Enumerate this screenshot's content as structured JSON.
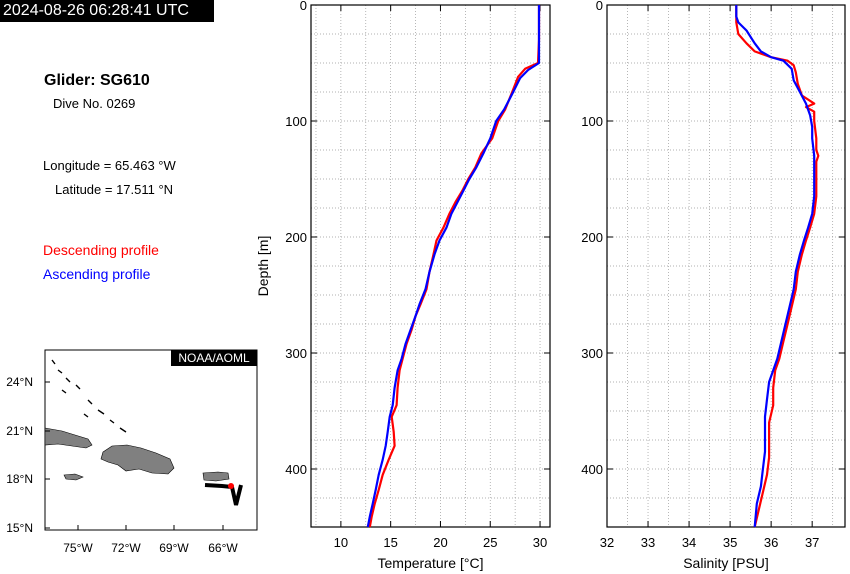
{
  "header": {
    "timestamp": "2024-08-26 06:28:41 UTC",
    "glider": "Glider: SG610",
    "dive": "Dive No. 0269",
    "longitude": "Longitude = 65.463 °W",
    "latitude": "Latitude = 17.511 °N"
  },
  "legend": {
    "descending": "Descending profile",
    "ascending": "Ascending profile",
    "descending_color": "#ff0000",
    "ascending_color": "#0000ff"
  },
  "map": {
    "credit": "NOAA/AOML",
    "lat_ticks": [
      "24°N",
      "21°N",
      "18°N",
      "15°N"
    ],
    "lon_ticks": [
      "75°W",
      "72°W",
      "69°W",
      "66°W"
    ],
    "land_color": "#808080",
    "track_color": "#000000",
    "glider_marker_color": "#ff0000"
  },
  "chart_data": [
    {
      "type": "line",
      "xlabel": "Temperature [°C]",
      "ylabel": "Depth [m]",
      "xlim": [
        7,
        31
      ],
      "ylim": [
        450,
        0
      ],
      "xticks": [
        10,
        15,
        20,
        25,
        30
      ],
      "yticks": [
        0,
        100,
        200,
        300,
        400
      ],
      "grid": true,
      "series": [
        {
          "name": "Descending profile",
          "color": "#ff0000",
          "points": [
            [
              29.9,
              0
            ],
            [
              29.9,
              30
            ],
            [
              29.8,
              50
            ],
            [
              28.5,
              55
            ],
            [
              27.8,
              62
            ],
            [
              27.2,
              75
            ],
            [
              26.5,
              90
            ],
            [
              25.8,
              100
            ],
            [
              25.2,
              115
            ],
            [
              24.1,
              128
            ],
            [
              23.5,
              140
            ],
            [
              22.8,
              150
            ],
            [
              22.2,
              160
            ],
            [
              21.5,
              170
            ],
            [
              20.9,
              180
            ],
            [
              20.3,
              192
            ],
            [
              19.6,
              203
            ],
            [
              19.3,
              215
            ],
            [
              18.9,
              230
            ],
            [
              18.6,
              245
            ],
            [
              18.0,
              258
            ],
            [
              17.5,
              268
            ],
            [
              17.1,
              280
            ],
            [
              16.6,
              292
            ],
            [
              16.2,
              305
            ],
            [
              15.9,
              315
            ],
            [
              15.7,
              330
            ],
            [
              15.6,
              345
            ],
            [
              15.1,
              355
            ],
            [
              15.3,
              368
            ],
            [
              15.4,
              380
            ],
            [
              14.8,
              392
            ],
            [
              14.2,
              405
            ],
            [
              13.8,
              418
            ],
            [
              13.4,
              430
            ],
            [
              13.1,
              441
            ],
            [
              12.9,
              450
            ]
          ]
        },
        {
          "name": "Ascending profile",
          "color": "#0000ff",
          "points": [
            [
              29.9,
              0
            ],
            [
              29.9,
              30
            ],
            [
              29.9,
              50
            ],
            [
              28.8,
              56
            ],
            [
              28.0,
              63
            ],
            [
              27.3,
              75
            ],
            [
              26.4,
              90
            ],
            [
              25.6,
              100
            ],
            [
              25.0,
              115
            ],
            [
              24.3,
              128
            ],
            [
              23.6,
              140
            ],
            [
              22.9,
              150
            ],
            [
              22.3,
              160
            ],
            [
              21.7,
              170
            ],
            [
              21.1,
              180
            ],
            [
              20.6,
              192
            ],
            [
              19.9,
              203
            ],
            [
              19.4,
              215
            ],
            [
              18.9,
              230
            ],
            [
              18.5,
              245
            ],
            [
              17.9,
              258
            ],
            [
              17.5,
              268
            ],
            [
              17.0,
              280
            ],
            [
              16.5,
              292
            ],
            [
              16.1,
              305
            ],
            [
              15.7,
              315
            ],
            [
              15.4,
              330
            ],
            [
              15.2,
              345
            ],
            [
              14.9,
              355
            ],
            [
              14.7,
              368
            ],
            [
              14.5,
              380
            ],
            [
              14.2,
              392
            ],
            [
              13.8,
              405
            ],
            [
              13.5,
              418
            ],
            [
              13.2,
              430
            ],
            [
              12.9,
              441
            ],
            [
              12.7,
              450
            ]
          ]
        }
      ]
    },
    {
      "type": "line",
      "xlabel": "Salinity [PSU]",
      "ylabel": "",
      "xlim": [
        32,
        37.8
      ],
      "ylim": [
        450,
        0
      ],
      "xticks": [
        32,
        33,
        34,
        35,
        36,
        37
      ],
      "yticks": [
        0,
        100,
        200,
        300,
        400
      ],
      "grid": true,
      "series": [
        {
          "name": "Descending profile",
          "color": "#ff0000",
          "points": [
            [
              35.15,
              0
            ],
            [
              35.15,
              15
            ],
            [
              35.2,
              25
            ],
            [
              35.4,
              33
            ],
            [
              35.6,
              40
            ],
            [
              36.0,
              45
            ],
            [
              36.4,
              48
            ],
            [
              36.55,
              52
            ],
            [
              36.6,
              58
            ],
            [
              36.65,
              68
            ],
            [
              36.75,
              78
            ],
            [
              37.05,
              85
            ],
            [
              36.85,
              88
            ],
            [
              37.05,
              92
            ],
            [
              37.05,
              100
            ],
            [
              37.1,
              115
            ],
            [
              37.1,
              125
            ],
            [
              37.15,
              130
            ],
            [
              37.1,
              135
            ],
            [
              37.1,
              150
            ],
            [
              37.1,
              165
            ],
            [
              37.05,
              180
            ],
            [
              36.95,
              192
            ],
            [
              36.85,
              203
            ],
            [
              36.75,
              215
            ],
            [
              36.65,
              230
            ],
            [
              36.6,
              245
            ],
            [
              36.5,
              260
            ],
            [
              36.4,
              275
            ],
            [
              36.3,
              290
            ],
            [
              36.2,
              305
            ],
            [
              36.1,
              315
            ],
            [
              36.05,
              330
            ],
            [
              36.05,
              345
            ],
            [
              35.95,
              360
            ],
            [
              35.95,
              375
            ],
            [
              35.95,
              390
            ],
            [
              35.9,
              405
            ],
            [
              35.8,
              420
            ],
            [
              35.7,
              435
            ],
            [
              35.6,
              450
            ]
          ]
        },
        {
          "name": "Ascending profile",
          "color": "#0000ff",
          "points": [
            [
              35.15,
              0
            ],
            [
              35.15,
              10
            ],
            [
              35.2,
              15
            ],
            [
              35.4,
              22
            ],
            [
              35.6,
              33
            ],
            [
              35.75,
              40
            ],
            [
              36.0,
              45
            ],
            [
              36.3,
              48
            ],
            [
              36.5,
              55
            ],
            [
              36.55,
              65
            ],
            [
              36.7,
              75
            ],
            [
              36.85,
              85
            ],
            [
              36.95,
              95
            ],
            [
              37.0,
              105
            ],
            [
              37.0,
              115
            ],
            [
              37.05,
              130
            ],
            [
              37.05,
              150
            ],
            [
              37.05,
              165
            ],
            [
              37.0,
              180
            ],
            [
              36.9,
              192
            ],
            [
              36.8,
              203
            ],
            [
              36.7,
              215
            ],
            [
              36.6,
              230
            ],
            [
              36.55,
              245
            ],
            [
              36.45,
              260
            ],
            [
              36.35,
              275
            ],
            [
              36.25,
              290
            ],
            [
              36.15,
              305
            ],
            [
              36.05,
              315
            ],
            [
              35.95,
              325
            ],
            [
              35.9,
              340
            ],
            [
              35.85,
              355
            ],
            [
              35.85,
              370
            ],
            [
              35.85,
              385
            ],
            [
              35.8,
              400
            ],
            [
              35.75,
              415
            ],
            [
              35.65,
              430
            ],
            [
              35.6,
              450
            ]
          ]
        }
      ]
    }
  ]
}
